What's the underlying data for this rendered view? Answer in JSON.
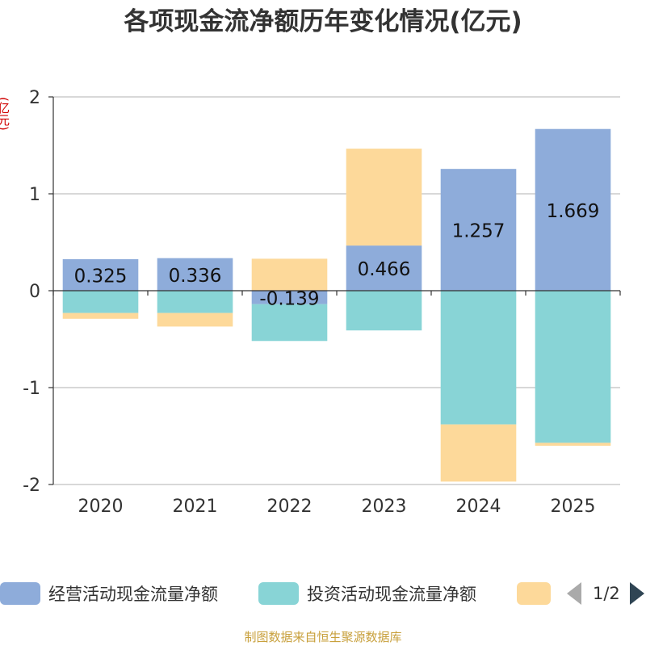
{
  "chart_data": {
    "type": "bar",
    "stacked": true,
    "title": "各项现金流净额历年变化情况(亿元)",
    "ylabel": "(亿元)",
    "xlabel": "",
    "ylim": [
      -2,
      2
    ],
    "yticks": [
      2,
      1,
      0,
      -1,
      -2
    ],
    "yticklabels": [
      "2",
      "1",
      "0",
      "-1",
      "-2"
    ],
    "categories": [
      "2020",
      "2021",
      "2022",
      "2023",
      "2024",
      "2025"
    ],
    "series": [
      {
        "name": "经营活动现金流量净额",
        "color": "#8eacda",
        "values": [
          0.325,
          0.336,
          -0.139,
          0.466,
          1.257,
          1.669
        ],
        "labels": [
          "0.325",
          "0.336",
          "-0.139",
          "0.466",
          "1.257",
          "1.669"
        ]
      },
      {
        "name": "投资活动现金流量净额",
        "color": "#88d4d6",
        "values": [
          -0.23,
          -0.23,
          -0.38,
          -0.41,
          -1.38,
          -1.57
        ]
      },
      {
        "name": "",
        "color": "#fdd99a",
        "values": [
          -0.06,
          -0.14,
          0.33,
          1.0,
          -0.59,
          -0.03
        ]
      }
    ],
    "legend": {
      "placement": "bottom",
      "page": "1/2"
    },
    "grid": true
  },
  "footer": "制图数据来自恒生聚源数据库"
}
